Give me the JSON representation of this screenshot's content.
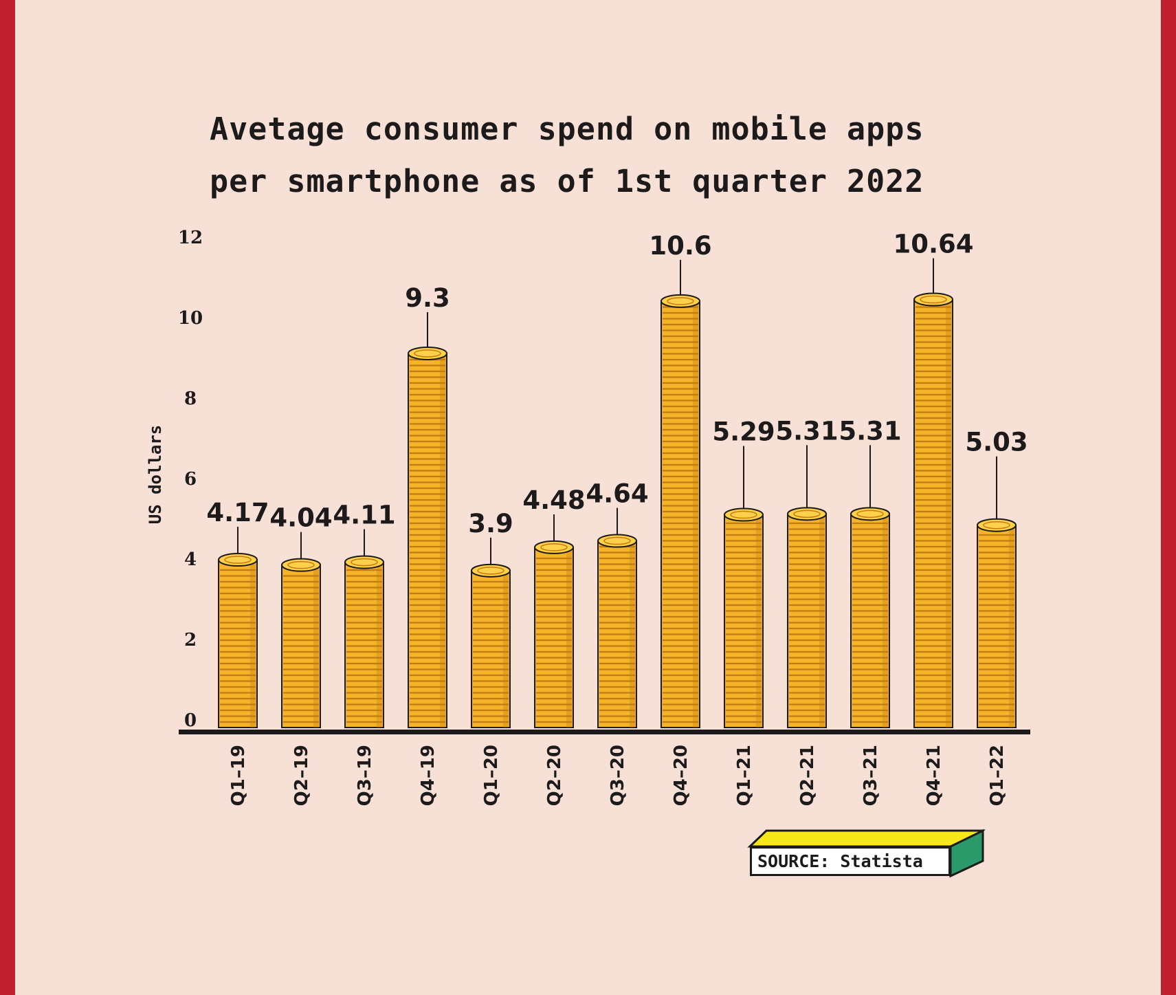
{
  "title_line1": "Avetage consumer spend on mobile apps",
  "title_line2": "per smartphone as of 1st quarter 2022",
  "source": "SOURCE: Statista",
  "colors": {
    "background": "#f7e1d7",
    "frame": "#c0202e",
    "coin": "#f4b42a",
    "coin_dark": "#c47a12",
    "coin_top": "#ffd04a",
    "axis": "#1c1a1a",
    "source_top": "#f7e81a",
    "source_side": "#2a9a6a"
  },
  "chart_data": {
    "type": "bar",
    "title": "Avetage consumer spend on mobile apps per smartphone as of 1st quarter 2022",
    "ylabel": "US dollars",
    "xlabel": "",
    "ylim": [
      0,
      12
    ],
    "yticks": [
      0,
      2,
      4,
      6,
      8,
      10,
      12
    ],
    "categories": [
      "Q1–19",
      "Q2–19",
      "Q3–19",
      "Q4–19",
      "Q1–20",
      "Q2–20",
      "Q3–20",
      "Q4–20",
      "Q1–21",
      "Q2–21",
      "Q3–21",
      "Q4–21",
      "Q1–22"
    ],
    "values": [
      4.17,
      4.04,
      4.11,
      9.3,
      3.9,
      4.48,
      4.64,
      10.6,
      5.29,
      5.31,
      5.31,
      10.64,
      5.03
    ],
    "value_labels": [
      "4.17",
      "4.04",
      "4.11",
      "9.3",
      "3.9",
      "4.48",
      "4.64",
      "10.6",
      "5.29",
      "5.31",
      "5.31",
      "10.64",
      "5.03"
    ]
  }
}
